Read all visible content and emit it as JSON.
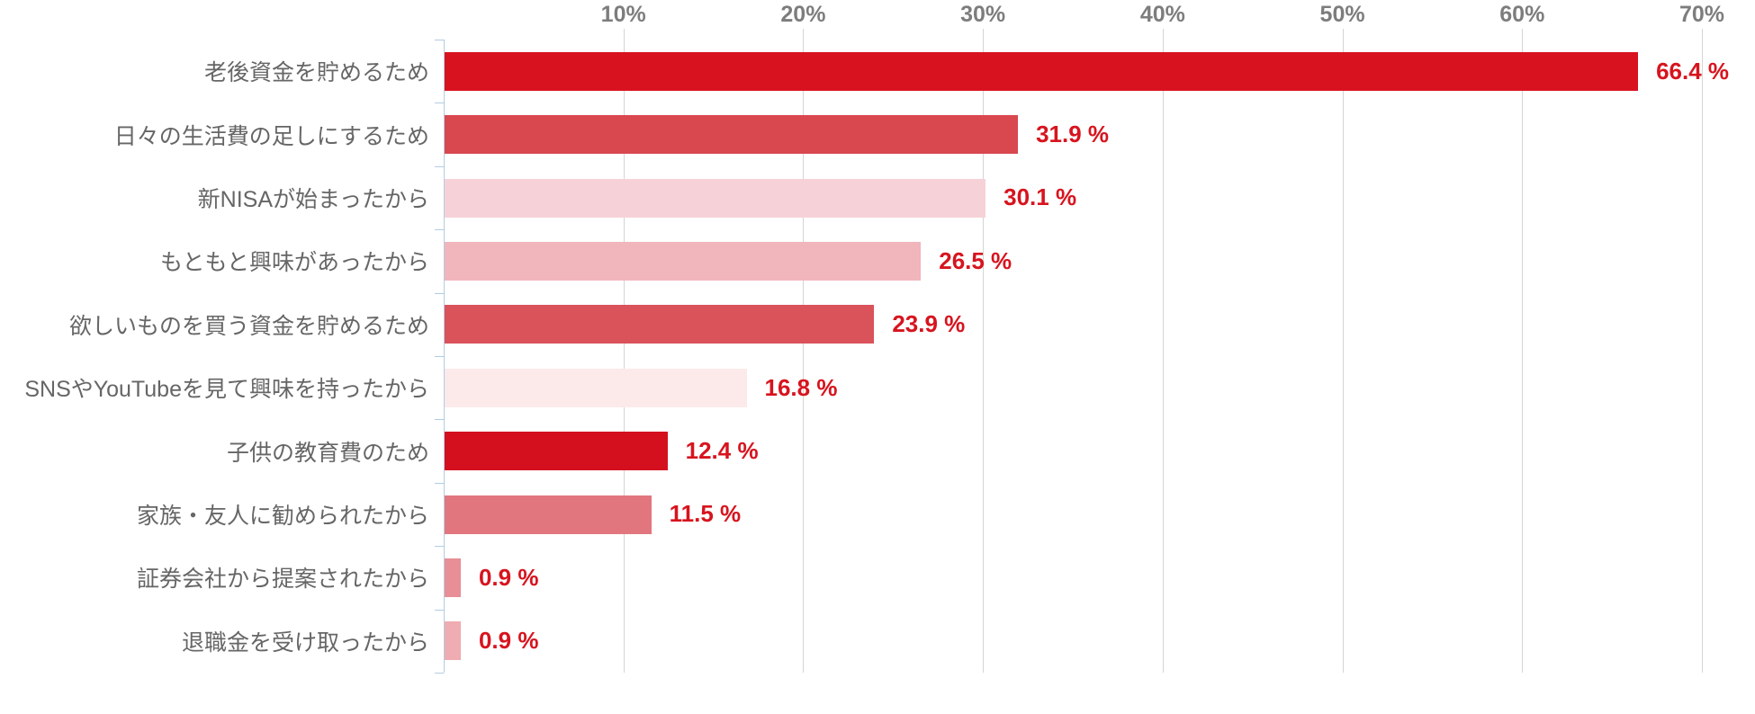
{
  "chart_data": {
    "type": "bar",
    "orientation": "horizontal",
    "title": "",
    "xlabel": "",
    "ylabel": "",
    "xlim": [
      0,
      70
    ],
    "grid": true,
    "legend": false,
    "categories": [
      "老後資金を貯めるため",
      "日々の生活費の足しにするため",
      "新NISAが始まったから",
      "もともと興味があったから",
      "欲しいものを買う資金を貯めるため",
      "SNSやYouTubeを見て興味を持ったから",
      "子供の教育費のため",
      "家族・友人に勧められたから",
      "証券会社から提案されたから",
      "退職金を受け取ったから"
    ],
    "values": [
      66.4,
      31.9,
      30.1,
      26.5,
      23.9,
      16.8,
      12.4,
      11.5,
      0.9,
      0.9
    ],
    "value_labels": [
      "66.4 %",
      "31.9 %",
      "30.1 %",
      "26.5 %",
      "23.9 %",
      "16.8 %",
      "12.4 %",
      "11.5 %",
      "0.9 %",
      "0.9 %"
    ],
    "bar_colors": [
      "#d8121f",
      "#d9474f",
      "#f6d2d8",
      "#f1b5bc",
      "#da525a",
      "#fce9ea",
      "#d4101f",
      "#e2767f",
      "#e78e96",
      "#efacb2"
    ],
    "x_ticks": [
      {
        "value": 10,
        "label": "10%"
      },
      {
        "value": 20,
        "label": "20%"
      },
      {
        "value": 30,
        "label": "30%"
      },
      {
        "value": 40,
        "label": "40%"
      },
      {
        "value": 50,
        "label": "50%"
      },
      {
        "value": 60,
        "label": "60%"
      },
      {
        "value": 70,
        "label": "70%"
      }
    ]
  },
  "colors": {
    "background": "#ffffff",
    "value_label": "#d7141e",
    "axis_tick_label": "#7d7d7d",
    "category_label": "#666666",
    "gridline": "#d5d5d5",
    "axis_line": "#b3cce0"
  }
}
